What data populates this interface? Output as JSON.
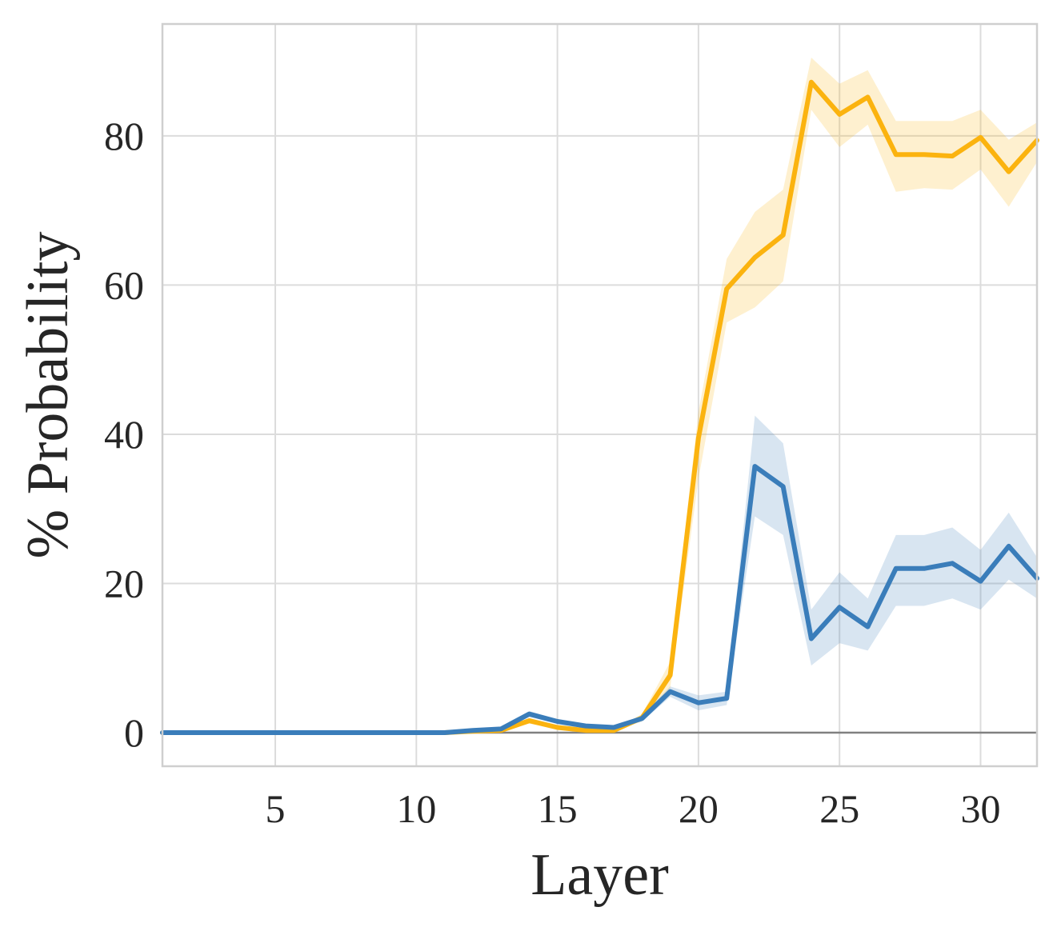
{
  "chart_data": {
    "type": "line",
    "title": "",
    "xlabel": "Layer",
    "ylabel": "% Probability",
    "xlim": [
      1,
      32
    ],
    "ylim": [
      -4.5,
      95
    ],
    "xticks": [
      5,
      10,
      15,
      20,
      25,
      30
    ],
    "yticks": [
      0,
      20,
      40,
      60,
      80
    ],
    "grid": true,
    "legend": "none",
    "baseline": 0,
    "x": [
      1,
      2,
      3,
      4,
      5,
      6,
      7,
      8,
      9,
      10,
      11,
      12,
      13,
      14,
      15,
      16,
      17,
      18,
      19,
      20,
      21,
      22,
      23,
      24,
      25,
      26,
      27,
      28,
      29,
      30,
      31,
      32
    ],
    "series": [
      {
        "color": "#fbb30f",
        "band_color": "#fbb30f",
        "values": [
          0,
          0,
          0,
          0,
          0,
          0,
          0,
          0,
          0,
          0,
          0,
          0.2,
          0.3,
          1.6,
          0.7,
          0.3,
          0.3,
          2,
          7.7,
          39.5,
          59.5,
          63.7,
          66.7,
          87.2,
          82.9,
          85.2,
          77.5,
          77.5,
          77.3,
          79.8,
          75.2,
          79.4
        ],
        "lower": [
          0,
          0,
          0,
          0,
          0,
          0,
          0,
          0,
          0,
          0,
          0,
          0.1,
          0.2,
          1.2,
          0.5,
          0.2,
          0.2,
          1.5,
          6,
          34,
          55,
          57,
          60.5,
          83.5,
          78.5,
          81.5,
          72.5,
          73,
          72.8,
          75.5,
          70.5,
          76.5
        ],
        "upper": [
          0,
          0,
          0,
          0,
          0,
          0,
          0,
          0,
          0,
          0,
          0,
          0.3,
          0.4,
          2,
          0.9,
          0.4,
          0.4,
          2.5,
          9.5,
          43,
          63.5,
          69.8,
          72.8,
          90.5,
          87,
          88.8,
          82,
          82,
          82,
          83.5,
          79.5,
          81.8
        ]
      },
      {
        "color": "#3a7dba",
        "band_color": "#3a7dba",
        "values": [
          0,
          0,
          0,
          0,
          0,
          0,
          0,
          0,
          0,
          0,
          0,
          0.3,
          0.5,
          2.5,
          1.5,
          0.9,
          0.7,
          1.9,
          5.5,
          4,
          4.6,
          35.7,
          33,
          12.6,
          16.8,
          14.2,
          22,
          22,
          22.7,
          20.3,
          25,
          20.7
        ],
        "lower": [
          0,
          0,
          0,
          0,
          0,
          0,
          0,
          0,
          0,
          0,
          0,
          0.2,
          0.3,
          2.1,
          1.2,
          0.7,
          0.5,
          1.5,
          4.8,
          3,
          3.7,
          29,
          26.5,
          9,
          12,
          11,
          17,
          17,
          18,
          16.5,
          20.5,
          18
        ],
        "upper": [
          0,
          0,
          0,
          0,
          0,
          0,
          0,
          0,
          0,
          0,
          0,
          0.4,
          0.7,
          2.9,
          1.8,
          1.1,
          0.9,
          2.3,
          6.2,
          5,
          5.5,
          42.5,
          38.8,
          16.5,
          21.5,
          18,
          26.5,
          26.5,
          27.5,
          24.5,
          29.5,
          23.5
        ]
      }
    ]
  }
}
